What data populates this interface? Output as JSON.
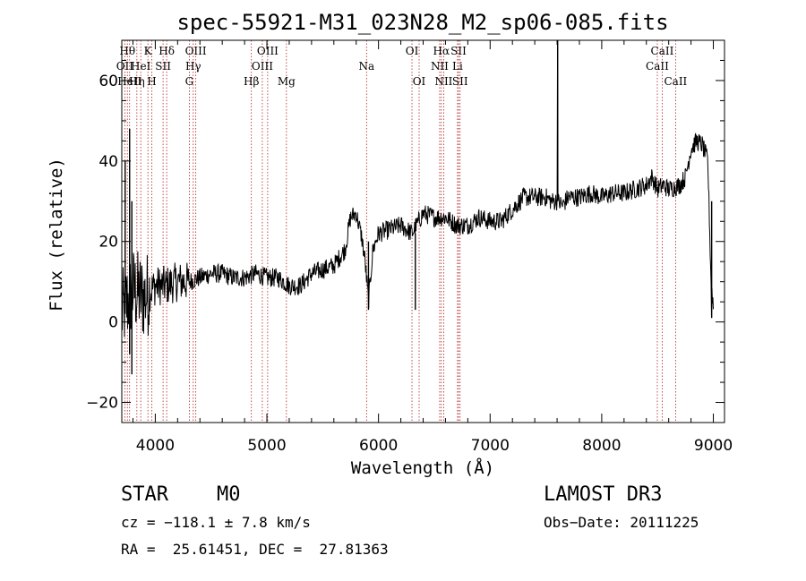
{
  "chart_data": {
    "type": "line",
    "title": "spec-55921-M31_023N28_M2_sp06-085.fits",
    "xlabel": "Wavelength (Å)",
    "ylabel": "Flux (relative)",
    "xlim": [
      3700,
      9100
    ],
    "ylim": [
      -25,
      70
    ],
    "xticks": [
      4000,
      5000,
      6000,
      7000,
      8000,
      9000
    ],
    "yticks": [
      -20,
      0,
      20,
      40,
      60
    ],
    "series": [
      {
        "name": "flux",
        "color": "#000000",
        "points": [
          [
            3700,
            2
          ],
          [
            3800,
            8
          ],
          [
            3900,
            6
          ],
          [
            4000,
            9
          ],
          [
            4100,
            9
          ],
          [
            4200,
            10
          ],
          [
            4300,
            10
          ],
          [
            4400,
            11
          ],
          [
            4500,
            12
          ],
          [
            4600,
            12
          ],
          [
            4700,
            11
          ],
          [
            4800,
            11
          ],
          [
            4900,
            12
          ],
          [
            5000,
            11
          ],
          [
            5100,
            11
          ],
          [
            5200,
            9
          ],
          [
            5300,
            9
          ],
          [
            5400,
            12
          ],
          [
            5500,
            13
          ],
          [
            5600,
            14
          ],
          [
            5700,
            18
          ],
          [
            5750,
            26
          ],
          [
            5800,
            27
          ],
          [
            5850,
            21
          ],
          [
            5880,
            15
          ],
          [
            5910,
            5
          ],
          [
            5950,
            18
          ],
          [
            6000,
            22
          ],
          [
            6100,
            23
          ],
          [
            6200,
            24
          ],
          [
            6300,
            22
          ],
          [
            6400,
            27
          ],
          [
            6500,
            26
          ],
          [
            6600,
            26
          ],
          [
            6700,
            24
          ],
          [
            6800,
            24
          ],
          [
            6900,
            26
          ],
          [
            7000,
            25
          ],
          [
            7100,
            25
          ],
          [
            7200,
            28
          ],
          [
            7300,
            31
          ],
          [
            7400,
            31
          ],
          [
            7500,
            31
          ],
          [
            7550,
            30
          ],
          [
            7600,
            30
          ],
          [
            7650,
            29
          ],
          [
            7700,
            31
          ],
          [
            7800,
            31
          ],
          [
            7900,
            32
          ],
          [
            8000,
            31
          ],
          [
            8100,
            32
          ],
          [
            8200,
            32
          ],
          [
            8300,
            33
          ],
          [
            8400,
            34
          ],
          [
            8450,
            36
          ],
          [
            8500,
            33
          ],
          [
            8550,
            34
          ],
          [
            8600,
            33
          ],
          [
            8700,
            34
          ],
          [
            8750,
            36
          ],
          [
            8800,
            43
          ],
          [
            8850,
            45
          ],
          [
            8900,
            44
          ],
          [
            8950,
            40
          ],
          [
            8980,
            10
          ],
          [
            9000,
            4
          ]
        ]
      }
    ],
    "noisy_bands": [
      {
        "x": [
          3700,
          3950
        ],
        "amp": 11
      },
      {
        "x": [
          3950,
          4300
        ],
        "amp": 5
      }
    ],
    "spikes": [
      {
        "x": 3730,
        "y0": 2,
        "y1": 40
      },
      {
        "x": 3770,
        "y0": -8,
        "y1": 48
      },
      {
        "x": 3790,
        "y0": -13,
        "y1": 30
      },
      {
        "x": 5910,
        "y0": 20,
        "y1": 3
      },
      {
        "x": 6330,
        "y0": 22,
        "y1": 3
      },
      {
        "x": 7605,
        "y0": 30,
        "y1": 70
      },
      {
        "x": 8985,
        "y0": 30,
        "y1": 1
      }
    ],
    "reference_lines": [
      {
        "x": 3727,
        "label": "OII",
        "row": 2
      },
      {
        "x": 3750,
        "label": "Hθ",
        "row": 1
      },
      {
        "x": 3770,
        "label": "HeII",
        "row": 3
      },
      {
        "x": 3835,
        "label": "Hη",
        "row": 3
      },
      {
        "x": 3870,
        "label": "HeI",
        "row": 2
      },
      {
        "x": 3934,
        "label": "K",
        "row": 1
      },
      {
        "x": 3969,
        "label": "H",
        "row": 3
      },
      {
        "x": 4070,
        "label": "SII",
        "row": 2
      },
      {
        "x": 4102,
        "label": "Hδ",
        "row": 1
      },
      {
        "x": 4305,
        "label": "G",
        "row": 3
      },
      {
        "x": 4340,
        "label": "Hγ",
        "row": 2
      },
      {
        "x": 4363,
        "label": "OIII",
        "row": 1
      },
      {
        "x": 4861,
        "label": "Hβ",
        "row": 3
      },
      {
        "x": 4959,
        "label": "OIII",
        "row": 2
      },
      {
        "x": 5007,
        "label": "OIII",
        "row": 1
      },
      {
        "x": 5175,
        "label": "Mg",
        "row": 3
      },
      {
        "x": 5893,
        "label": "Na",
        "row": 2
      },
      {
        "x": 6300,
        "label": "OI",
        "row": 1
      },
      {
        "x": 6364,
        "label": "OI",
        "row": 3
      },
      {
        "x": 6548,
        "label": "NII",
        "row": 2
      },
      {
        "x": 6563,
        "label": "Hα",
        "row": 1
      },
      {
        "x": 6584,
        "label": "NII",
        "row": 3
      },
      {
        "x": 6708,
        "label": "Li",
        "row": 2
      },
      {
        "x": 6717,
        "label": "SII",
        "row": 1
      },
      {
        "x": 6731,
        "label": "SII",
        "row": 3
      },
      {
        "x": 8498,
        "label": "CaII",
        "row": 2
      },
      {
        "x": 8542,
        "label": "CaII",
        "row": 1
      },
      {
        "x": 8662,
        "label": "CaII",
        "row": 3
      }
    ],
    "reference_color": "#b22222"
  },
  "info": {
    "class": "STAR",
    "subclass": "M0",
    "survey": "LAMOST DR3",
    "redshift": "cz = −118.1 ± 7.8 km/s",
    "obs_date": "Obs−Date: 20111225",
    "coords": "RA =  25.61451, DEC =  27.81363"
  }
}
